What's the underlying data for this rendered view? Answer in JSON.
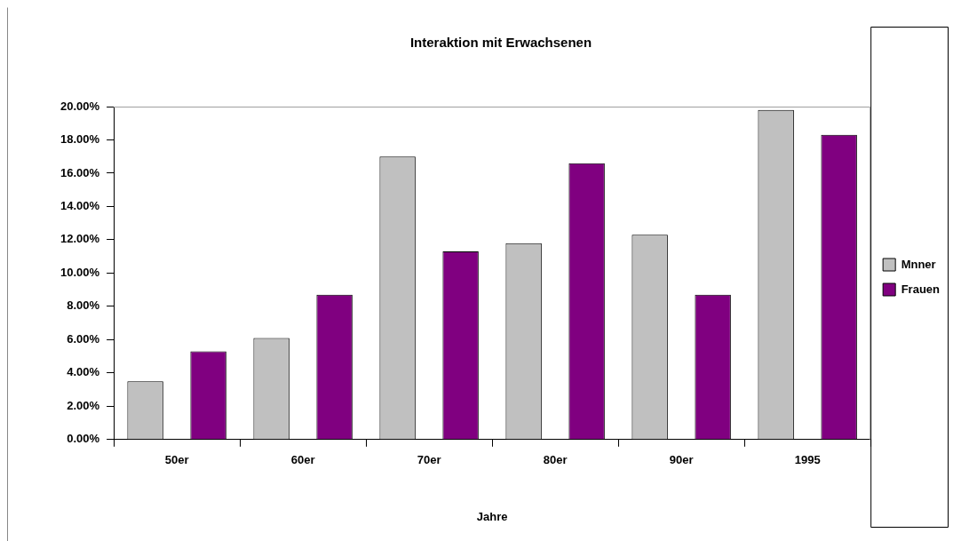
{
  "chart_data": {
    "type": "bar",
    "title": "Interaktion mit Erwachsenen",
    "xlabel": "Jahre",
    "categories": [
      "50er",
      "60er",
      "70er",
      "80er",
      "90er",
      "1995"
    ],
    "series": [
      {
        "name": "Mnner",
        "color": "#c0c0c0",
        "values": [
          3.5,
          6.1,
          17.0,
          11.8,
          12.3,
          19.8
        ]
      },
      {
        "name": "Frauen",
        "color": "#800080",
        "values": [
          5.3,
          8.7,
          11.3,
          16.6,
          8.7,
          18.3
        ]
      }
    ],
    "ylim": [
      0,
      20
    ],
    "yticks": [
      {
        "value": 0,
        "label": "0.00%"
      },
      {
        "value": 2,
        "label": "2.00%"
      },
      {
        "value": 4,
        "label": "4.00%"
      },
      {
        "value": 6,
        "label": "6.00%"
      },
      {
        "value": 8,
        "label": "8.00%"
      },
      {
        "value": 10,
        "label": "10.00%"
      },
      {
        "value": 12,
        "label": "12.00%"
      },
      {
        "value": 14,
        "label": "14.00%"
      },
      {
        "value": 16,
        "label": "16.00%"
      },
      {
        "value": 18,
        "label": "18.00%"
      },
      {
        "value": 20,
        "label": "20.00%"
      }
    ],
    "grid": false,
    "legend": "right"
  }
}
